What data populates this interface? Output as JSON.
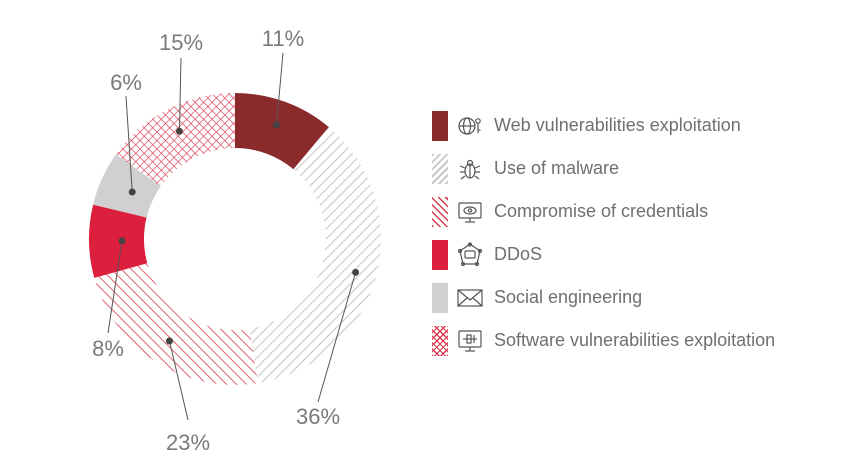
{
  "chart_data": {
    "type": "pie",
    "style": "donut",
    "categories": [
      "Web vulnerabilities exploitation",
      "Use of malware",
      "Compromise of credentials",
      "DDoS",
      "Social engineering",
      "Software vulnerabilities exploitation"
    ],
    "values": [
      11,
      36,
      23,
      8,
      6,
      15
    ],
    "value_labels": [
      "11%",
      "36%",
      "23%",
      "8%",
      "6%",
      "15%"
    ],
    "legend": "right",
    "colors": {
      "web": "#8b2a2b",
      "malware": "#c8c8c8",
      "credentials": "#d7394f",
      "ddos": "#dc1f3c",
      "social": "#d0cfd1",
      "software": "#d7394f"
    },
    "fills": [
      "solid",
      "diagonal-hatch-light-gray",
      "diagonal-hatch-red",
      "solid",
      "solid",
      "crosshatch-red"
    ],
    "icons": [
      "globe-key-icon",
      "bug-icon",
      "monitor-eye-icon",
      "network-node-icon",
      "envelope-icon",
      "monitor-code-icon"
    ]
  }
}
